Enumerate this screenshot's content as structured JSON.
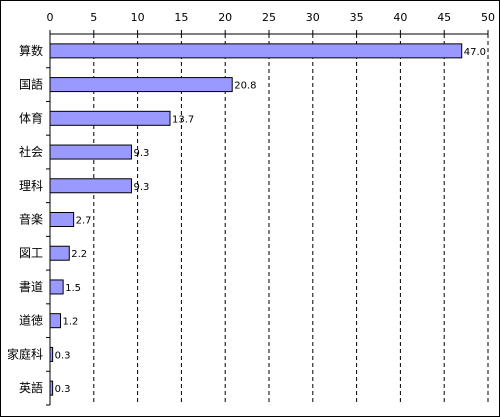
{
  "colors": {
    "bar_fill": "#9999ff",
    "bar_stroke": "#000000",
    "grid": "#000000",
    "axis": "#000000"
  },
  "chart_data": {
    "type": "bar",
    "orientation": "horizontal",
    "title": "",
    "xlabel": "",
    "ylabel": "",
    "xlim": [
      0,
      50
    ],
    "ticks": [
      0,
      5,
      10,
      15,
      20,
      25,
      30,
      35,
      40,
      45,
      50
    ],
    "tick_position": "top",
    "grid": "vertical-dashed",
    "legend": "none",
    "categories": [
      "算数",
      "国語",
      "体育",
      "社会",
      "理科",
      "音楽",
      "図工",
      "書道",
      "道徳",
      "家庭科",
      "英語"
    ],
    "values": [
      47.0,
      20.8,
      13.7,
      9.3,
      9.3,
      2.7,
      2.2,
      1.5,
      1.2,
      0.3,
      0.3
    ],
    "value_labels": [
      "47.0",
      "20.8",
      "13.7",
      "9.3",
      "9.3",
      "2.7",
      "2.2",
      "1.5",
      "1.2",
      "0.3",
      "0.3"
    ]
  }
}
